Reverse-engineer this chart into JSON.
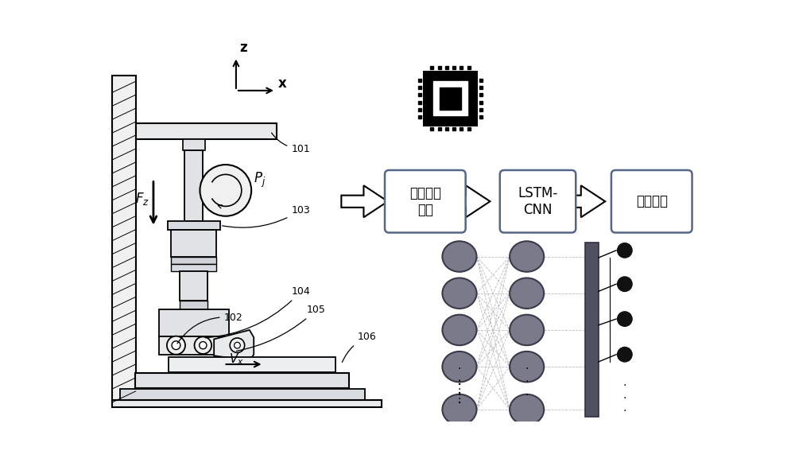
{
  "bg_color": "#ffffff",
  "line_color": "#000000",
  "node_color": "#7a7a8a",
  "node_edge": "#3a3a4a",
  "dark_bar": "#505060",
  "box_border": "#556688",
  "box_labels": [
    "信号处理\n模块",
    "LSTM-\nCNN",
    "样本识别"
  ],
  "numbers": [
    "101",
    "102",
    "103",
    "104",
    "105",
    "106"
  ],
  "axis_z": "z",
  "axis_x": "x",
  "force_label": "$F_z$",
  "pressure_label": "$P_j$",
  "velocity_label": "$V_x$"
}
